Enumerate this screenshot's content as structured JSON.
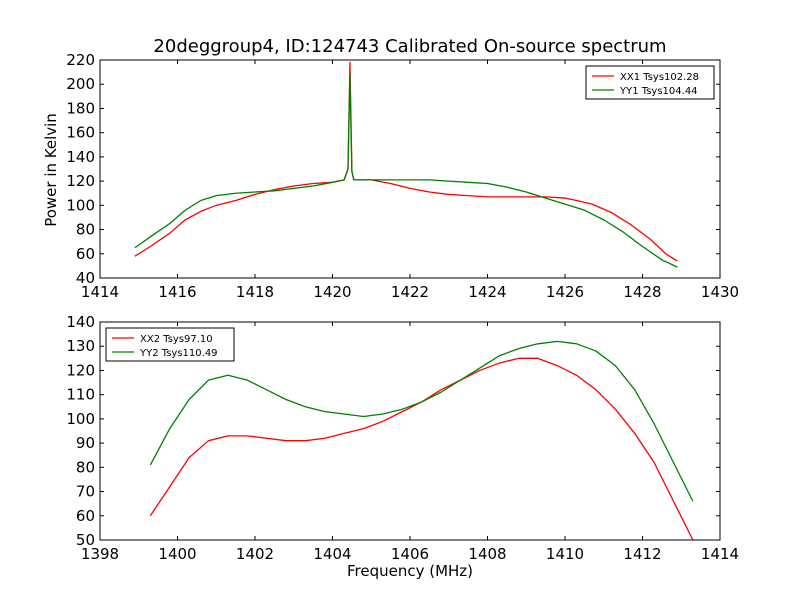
{
  "chart_data": [
    {
      "type": "line",
      "title": "20deggroup4, ID:124743 Calibrated On-source spectrum",
      "xlabel": "",
      "ylabel": "Power in Kelvin",
      "xlim": [
        1414,
        1430
      ],
      "ylim": [
        40,
        220
      ],
      "xticks": [
        1414,
        1416,
        1418,
        1420,
        1422,
        1424,
        1426,
        1428,
        1430
      ],
      "yticks": [
        40,
        60,
        80,
        100,
        120,
        140,
        160,
        180,
        200,
        220
      ],
      "grid": false,
      "legend_position": "upper right",
      "series": [
        {
          "name": "XX1 Tsys102.28",
          "color": "#ff0000",
          "points": [
            [
              1414.9,
              58
            ],
            [
              1415.3,
              66
            ],
            [
              1415.8,
              77
            ],
            [
              1416.2,
              88
            ],
            [
              1416.6,
              95
            ],
            [
              1417.0,
              100
            ],
            [
              1417.5,
              104
            ],
            [
              1418.0,
              109
            ],
            [
              1418.5,
              113
            ],
            [
              1419.0,
              116
            ],
            [
              1419.5,
              118
            ],
            [
              1420.0,
              119
            ],
            [
              1420.3,
              121
            ],
            [
              1420.4,
              130
            ],
            [
              1420.45,
              218
            ],
            [
              1420.5,
              128
            ],
            [
              1420.55,
              121
            ],
            [
              1420.7,
              121
            ],
            [
              1421.0,
              121
            ],
            [
              1421.5,
              118
            ],
            [
              1422.0,
              114
            ],
            [
              1422.5,
              111
            ],
            [
              1423.0,
              109
            ],
            [
              1423.5,
              108
            ],
            [
              1424.0,
              107
            ],
            [
              1424.5,
              107
            ],
            [
              1425.0,
              107
            ],
            [
              1425.5,
              107
            ],
            [
              1426.0,
              106
            ],
            [
              1426.3,
              104
            ],
            [
              1426.7,
              101
            ],
            [
              1427.2,
              94
            ],
            [
              1427.7,
              84
            ],
            [
              1428.2,
              72
            ],
            [
              1428.6,
              60
            ],
            [
              1428.9,
              54
            ]
          ]
        },
        {
          "name": "YY1 Tsys104.44",
          "color": "#008000",
          "points": [
            [
              1414.9,
              65
            ],
            [
              1415.3,
              74
            ],
            [
              1415.8,
              85
            ],
            [
              1416.2,
              96
            ],
            [
              1416.6,
              104
            ],
            [
              1417.0,
              108
            ],
            [
              1417.5,
              110
            ],
            [
              1418.0,
              111
            ],
            [
              1418.5,
              112
            ],
            [
              1419.0,
              114
            ],
            [
              1419.5,
              116
            ],
            [
              1420.0,
              119
            ],
            [
              1420.3,
              121
            ],
            [
              1420.4,
              130
            ],
            [
              1420.45,
              208
            ],
            [
              1420.5,
              128
            ],
            [
              1420.55,
              121
            ],
            [
              1420.7,
              121
            ],
            [
              1421.0,
              121
            ],
            [
              1421.5,
              121
            ],
            [
              1422.0,
              121
            ],
            [
              1422.5,
              121
            ],
            [
              1423.0,
              120
            ],
            [
              1423.5,
              119
            ],
            [
              1424.0,
              118
            ],
            [
              1424.5,
              115
            ],
            [
              1425.0,
              111
            ],
            [
              1425.5,
              106
            ],
            [
              1426.0,
              101
            ],
            [
              1426.5,
              96
            ],
            [
              1427.0,
              88
            ],
            [
              1427.5,
              78
            ],
            [
              1428.0,
              66
            ],
            [
              1428.5,
              55
            ],
            [
              1428.9,
              49
            ]
          ]
        }
      ]
    },
    {
      "type": "line",
      "title": "",
      "xlabel": "Frequency (MHz)",
      "ylabel": "",
      "xlim": [
        1398,
        1414
      ],
      "ylim": [
        50,
        140
      ],
      "xticks": [
        1398,
        1400,
        1402,
        1404,
        1406,
        1408,
        1410,
        1412,
        1414
      ],
      "yticks": [
        50,
        60,
        70,
        80,
        90,
        100,
        110,
        120,
        130,
        140
      ],
      "grid": false,
      "legend_position": "upper left",
      "series": [
        {
          "name": "XX2 Tsys97.10",
          "color": "#ff0000",
          "points": [
            [
              1399.3,
              60
            ],
            [
              1399.8,
              72
            ],
            [
              1400.3,
              84
            ],
            [
              1400.8,
              91
            ],
            [
              1401.3,
              93
            ],
            [
              1401.8,
              93
            ],
            [
              1402.3,
              92
            ],
            [
              1402.8,
              91
            ],
            [
              1403.3,
              91
            ],
            [
              1403.8,
              92
            ],
            [
              1404.3,
              94
            ],
            [
              1404.8,
              96
            ],
            [
              1405.3,
              99
            ],
            [
              1405.8,
              103
            ],
            [
              1406.3,
              107
            ],
            [
              1406.8,
              112
            ],
            [
              1407.3,
              116
            ],
            [
              1407.8,
              120
            ],
            [
              1408.3,
              123
            ],
            [
              1408.8,
              125
            ],
            [
              1409.3,
              125
            ],
            [
              1409.8,
              122
            ],
            [
              1410.3,
              118
            ],
            [
              1410.8,
              112
            ],
            [
              1411.3,
              104
            ],
            [
              1411.8,
              94
            ],
            [
              1412.3,
              82
            ],
            [
              1412.8,
              66
            ],
            [
              1413.3,
              50
            ]
          ]
        },
        {
          "name": "YY2 Tsys110.49",
          "color": "#008000",
          "points": [
            [
              1399.3,
              81
            ],
            [
              1399.8,
              96
            ],
            [
              1400.3,
              108
            ],
            [
              1400.8,
              116
            ],
            [
              1401.3,
              118
            ],
            [
              1401.8,
              116
            ],
            [
              1402.3,
              112
            ],
            [
              1402.8,
              108
            ],
            [
              1403.3,
              105
            ],
            [
              1403.8,
              103
            ],
            [
              1404.3,
              102
            ],
            [
              1404.8,
              101
            ],
            [
              1405.3,
              102
            ],
            [
              1405.8,
              104
            ],
            [
              1406.3,
              107
            ],
            [
              1406.8,
              111
            ],
            [
              1407.3,
              116
            ],
            [
              1407.8,
              121
            ],
            [
              1408.3,
              126
            ],
            [
              1408.8,
              129
            ],
            [
              1409.3,
              131
            ],
            [
              1409.8,
              132
            ],
            [
              1410.3,
              131
            ],
            [
              1410.8,
              128
            ],
            [
              1411.3,
              122
            ],
            [
              1411.8,
              112
            ],
            [
              1412.3,
              98
            ],
            [
              1412.8,
              82
            ],
            [
              1413.3,
              66
            ]
          ]
        }
      ]
    }
  ]
}
